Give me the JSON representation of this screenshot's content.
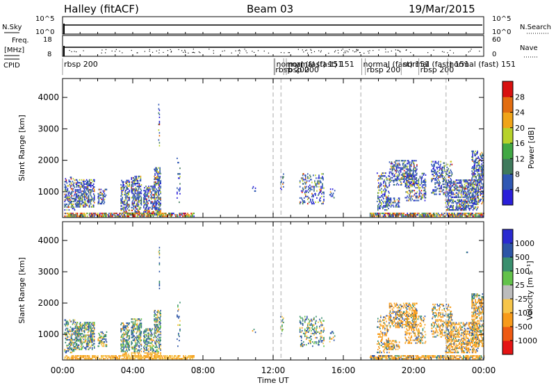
{
  "header": {
    "station": "Halley (fitACF)",
    "beam": "Beam 03",
    "date": "19/Mar/2015"
  },
  "summary_panels": {
    "nsky_label": "N.Sky",
    "nsearch_label": "N.Search",
    "nsky_ticks": [
      "10^5",
      "10^0"
    ],
    "nsearch_ticks": [
      "10^5",
      "10^0"
    ],
    "freq_label_1": "Freq.",
    "freq_label_2": "[MHz]",
    "freq_ticks": [
      "18",
      "8"
    ],
    "nave_label": "Nave",
    "nave_ticks": [
      "60",
      "0"
    ],
    "cpid_label": "CPID",
    "cpid_segments": [
      {
        "label": "rbsp 200",
        "row": "top",
        "x": 0.0
      },
      {
        "label": "rbsp 200",
        "row": "bottom",
        "x": 12.05
      },
      {
        "label": "normal (fast) 151",
        "row": "top",
        "x": 12.1
      },
      {
        "label": "rbsp 200",
        "row": "bottom",
        "x": 12.6
      },
      {
        "label": "normal (fast) 151",
        "row": "top",
        "x": 12.75
      },
      {
        "label": "normal (fast) 151",
        "row": "top",
        "x": 17.05
      },
      {
        "label": "rbsp 200",
        "row": "bottom",
        "x": 17.25
      },
      {
        "label": "normal (fast) 151",
        "row": "top",
        "x": 19.3
      },
      {
        "label": "rbsp 200",
        "row": "bottom",
        "x": 20.3
      },
      {
        "label": "normal (fast) 151",
        "row": "top",
        "x": 21.95
      }
    ]
  },
  "chart_data": [
    {
      "type": "heatmap",
      "panel": "power",
      "xlabel": "Time UT",
      "ylabel": "Slant Range [km]",
      "xlim": [
        0,
        24
      ],
      "ylim": [
        180,
        4600
      ],
      "x_ticks": [
        "00:00",
        "04:00",
        "08:00",
        "12:00",
        "16:00",
        "20:00",
        "00:00"
      ],
      "y_ticks": [
        "1000",
        "2000",
        "3000",
        "4000"
      ],
      "colorbar_label": "Power [dB]",
      "colorbar_ticks": [
        "4",
        "8",
        "12",
        "16",
        "20",
        "24",
        "28"
      ],
      "colorbar_range": [
        0,
        32
      ],
      "colorbar_colors": [
        "#2a1fd9",
        "#2f57b3",
        "#3f7a5c",
        "#41a844",
        "#b7d22a",
        "#f0a418",
        "#e26d10",
        "#d8100f"
      ],
      "mode_change_times": [
        12.0,
        12.45,
        17.0,
        21.85
      ]
    },
    {
      "type": "heatmap",
      "panel": "velocity",
      "xlabel": "Time UT",
      "ylabel": "Slant Range [km]",
      "xlim": [
        0,
        24
      ],
      "ylim": [
        180,
        4600
      ],
      "x_ticks": [
        "00:00",
        "04:00",
        "08:00",
        "12:00",
        "16:00",
        "20:00",
        "00:00"
      ],
      "y_ticks": [
        "1000",
        "2000",
        "3000",
        "4000"
      ],
      "colorbar_label": "Velocity [m s⁻¹]",
      "colorbar_ticks": [
        "-1000",
        "-500",
        "-100",
        "-25",
        "25",
        "100",
        "500",
        "1000"
      ],
      "colorbar_colors": [
        "#e41414",
        "#ee5a12",
        "#f79a1a",
        "#f6c54a",
        "#bcbcbc",
        "#62c24a",
        "#3a8f6e",
        "#2d55a6",
        "#2a2ad0"
      ],
      "mode_change_times": [
        12.0,
        12.45,
        17.0,
        21.85
      ]
    }
  ]
}
